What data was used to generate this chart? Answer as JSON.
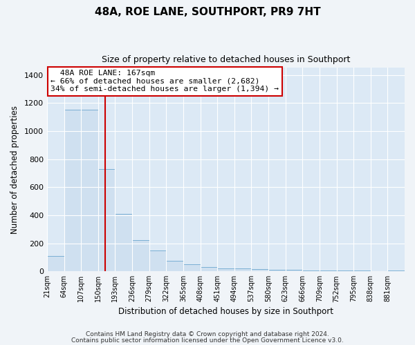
{
  "title": "48A, ROE LANE, SOUTHPORT, PR9 7HT",
  "subtitle": "Size of property relative to detached houses in Southport",
  "xlabel": "Distribution of detached houses by size in Southport",
  "ylabel": "Number of detached properties",
  "bar_color": "#cfe0f0",
  "bar_edge_color": "#7aafd4",
  "plot_bg_color": "#dce9f5",
  "fig_bg_color": "#f0f4f8",
  "grid_color": "#ffffff",
  "vline_x": 167,
  "vline_color": "#cc0000",
  "categories": [
    "21sqm",
    "64sqm",
    "107sqm",
    "150sqm",
    "193sqm",
    "236sqm",
    "279sqm",
    "322sqm",
    "365sqm",
    "408sqm",
    "451sqm",
    "494sqm",
    "537sqm",
    "580sqm",
    "623sqm",
    "666sqm",
    "709sqm",
    "752sqm",
    "795sqm",
    "838sqm",
    "881sqm"
  ],
  "bin_edges": [
    21,
    64,
    107,
    150,
    193,
    236,
    279,
    322,
    365,
    408,
    451,
    494,
    537,
    580,
    623,
    666,
    709,
    752,
    795,
    838,
    881,
    924
  ],
  "values": [
    110,
    1150,
    1150,
    730,
    410,
    220,
    150,
    75,
    50,
    30,
    20,
    20,
    15,
    10,
    10,
    5,
    5,
    5,
    5,
    0,
    5
  ],
  "ylim": [
    0,
    1450
  ],
  "yticks": [
    0,
    200,
    400,
    600,
    800,
    1000,
    1200,
    1400
  ],
  "annotation_title": "48A ROE LANE: 167sqm",
  "annotation_line1": "← 66% of detached houses are smaller (2,682)",
  "annotation_line2": "34% of semi-detached houses are larger (1,394) →",
  "annotation_box_color": "#ffffff",
  "annotation_box_edge": "#cc0000",
  "footer1": "Contains HM Land Registry data © Crown copyright and database right 2024.",
  "footer2": "Contains public sector information licensed under the Open Government Licence v3.0."
}
